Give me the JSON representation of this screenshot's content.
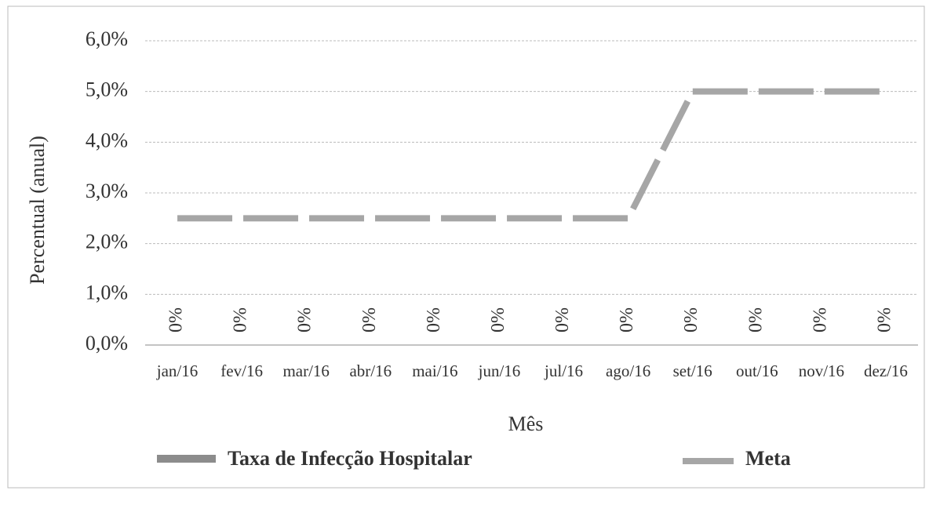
{
  "chart_data": {
    "type": "bar",
    "y_label": "Percentual (anual)",
    "x_label": "Mês",
    "categories": [
      "jan/16",
      "fev/16",
      "mar/16",
      "abr/16",
      "mai/16",
      "jun/16",
      "jul/16",
      "ago/16",
      "set/16",
      "out/16",
      "nov/16",
      "dez/16"
    ],
    "series": [
      {
        "name": "Taxa de Infecção Hospitalar",
        "type": "bar",
        "color": "#8c8c8c",
        "values": [
          0,
          0,
          0,
          0,
          0,
          0,
          0,
          0,
          0,
          0,
          0,
          0
        ],
        "value_labels": [
          "0%",
          "0%",
          "0%",
          "0%",
          "0%",
          "0%",
          "0%",
          "0%",
          "0%",
          "0%",
          "0%",
          "0%"
        ]
      },
      {
        "name": "Meta",
        "type": "line",
        "color": "#a6a6a6",
        "values": [
          2.5,
          2.5,
          2.5,
          2.5,
          2.5,
          2.5,
          2.5,
          2.5,
          5,
          5,
          5,
          5
        ]
      }
    ],
    "ylim": [
      0,
      6
    ],
    "yticks": [
      {
        "value": 0,
        "label": "0,0%"
      },
      {
        "value": 1,
        "label": "1,0%"
      },
      {
        "value": 2,
        "label": "2,0%"
      },
      {
        "value": 3,
        "label": "3,0%"
      },
      {
        "value": 4,
        "label": "4,0%"
      },
      {
        "value": 5,
        "label": "5,0%"
      },
      {
        "value": 6,
        "label": "6,0%"
      }
    ],
    "grid": true,
    "legend": "bottom"
  }
}
